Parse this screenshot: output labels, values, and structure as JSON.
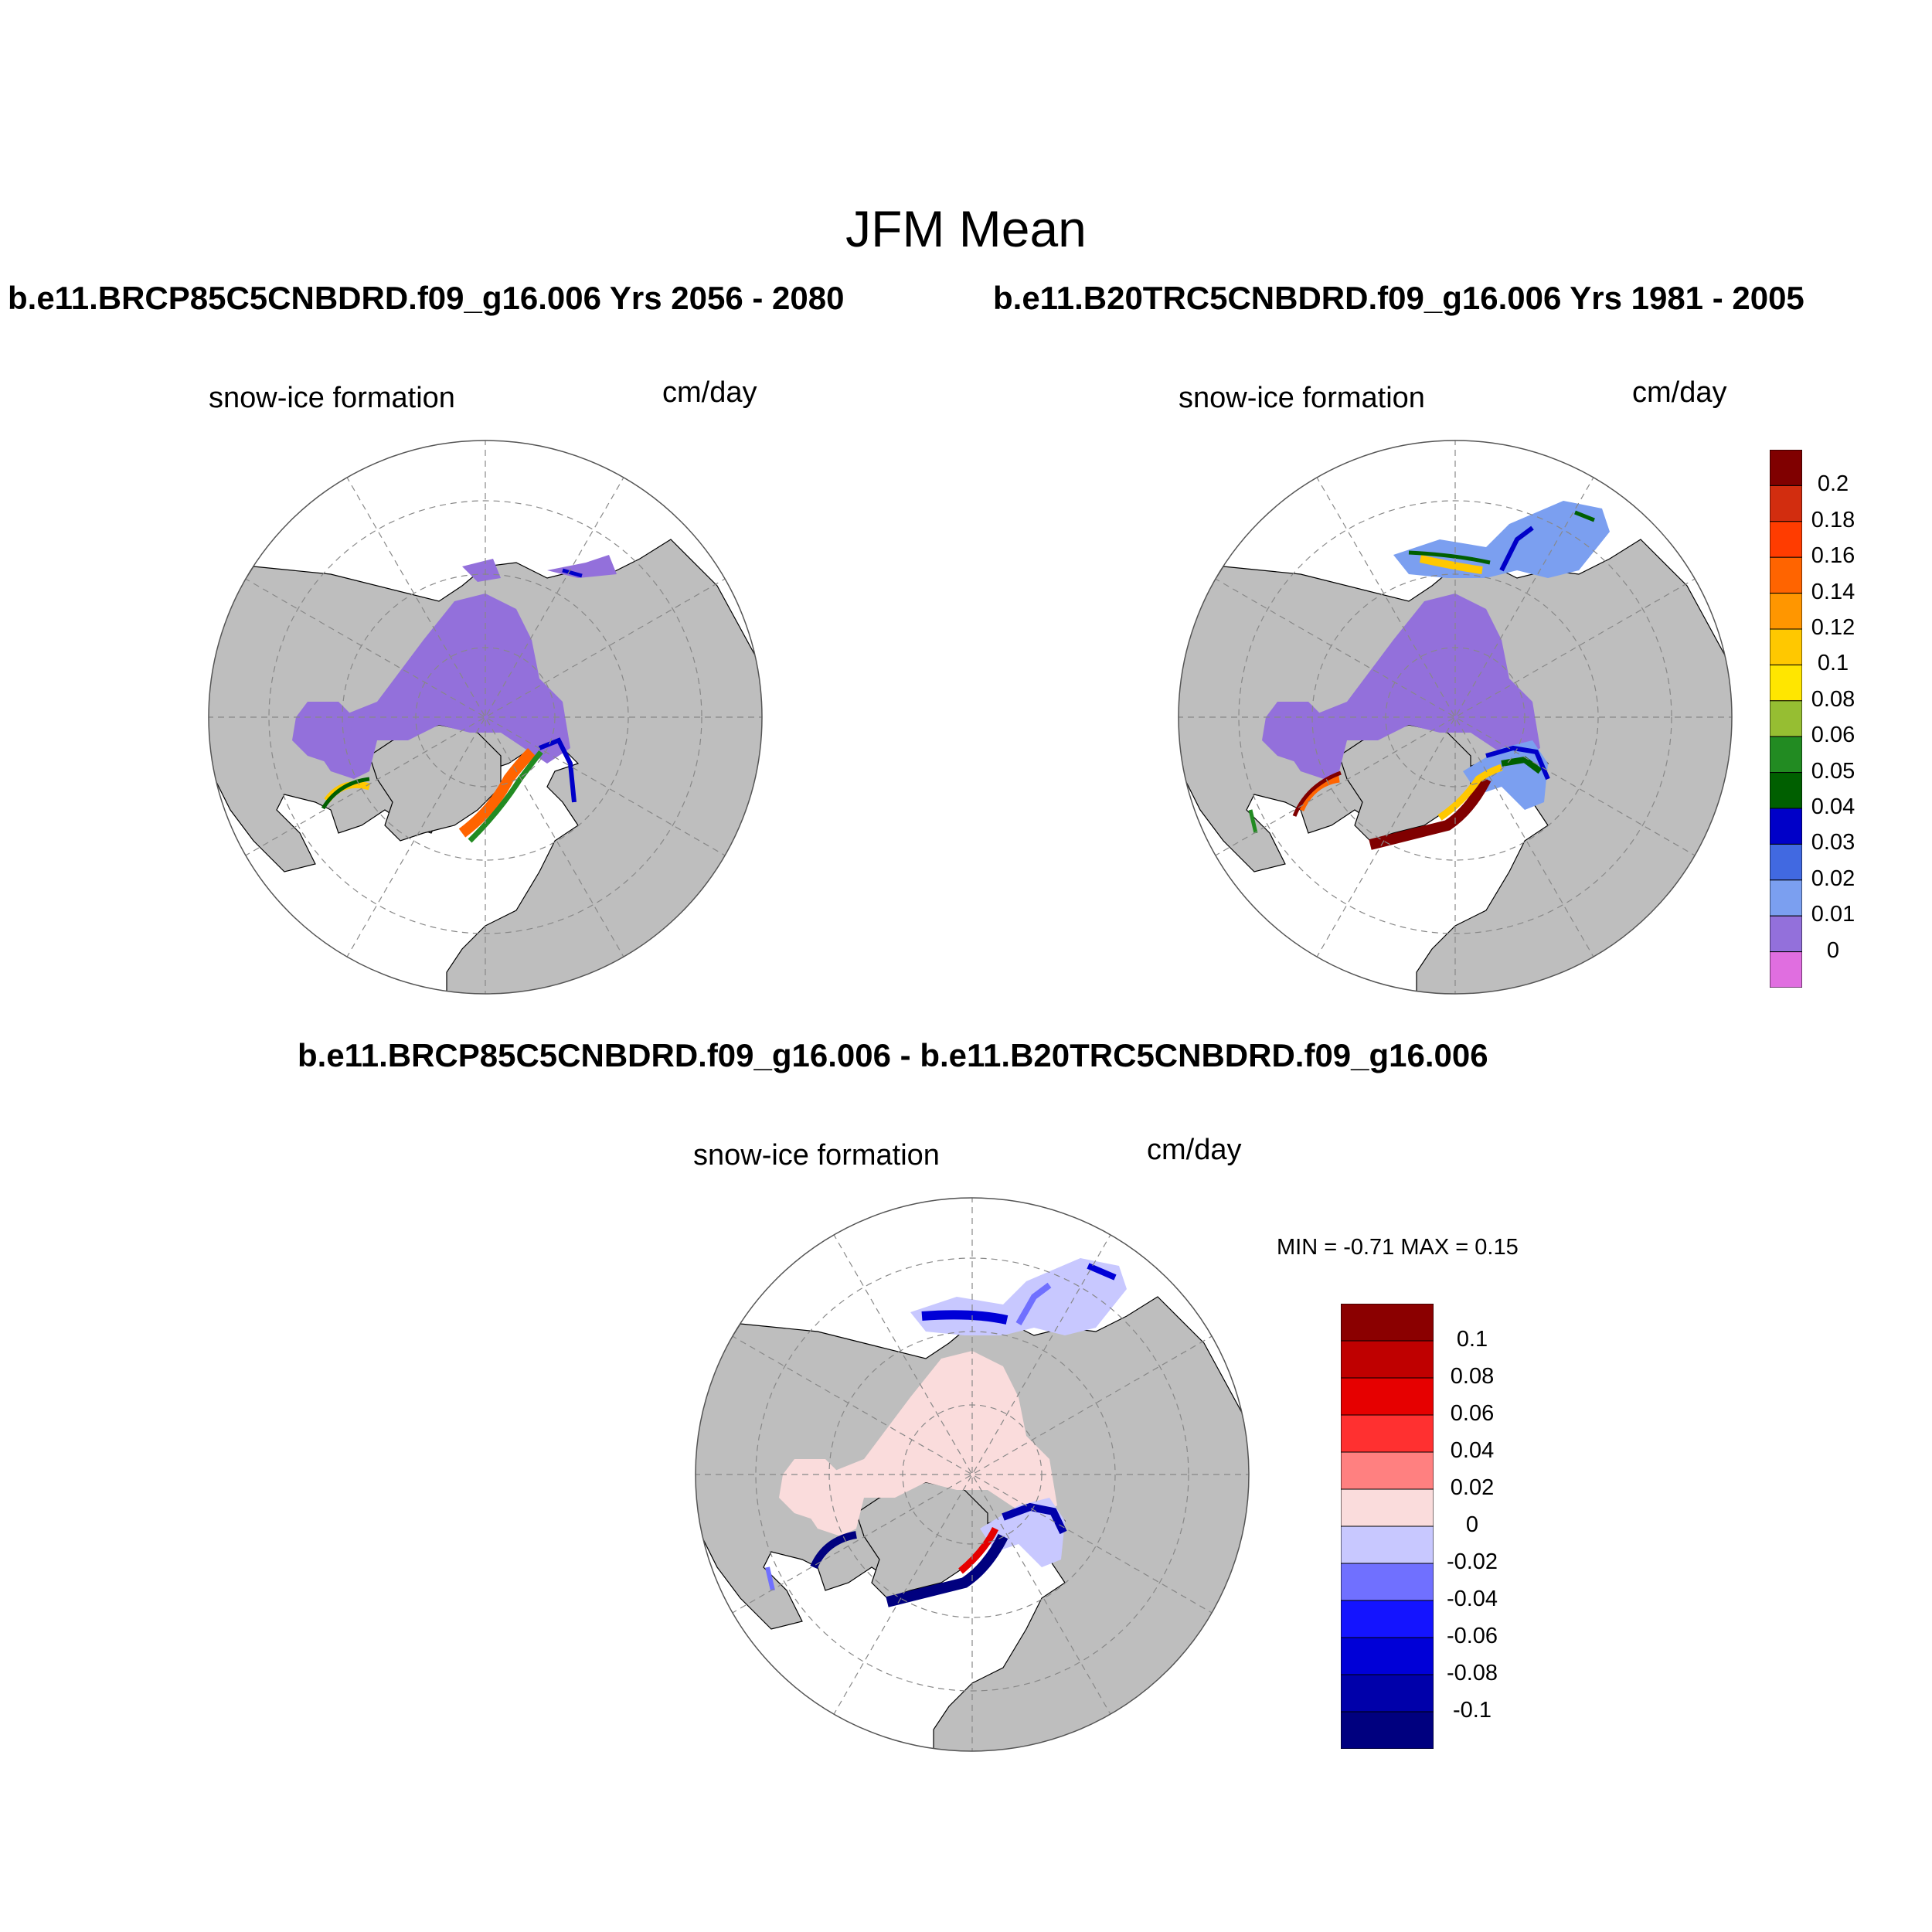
{
  "figure": {
    "title": "JFM Mean"
  },
  "panels": [
    {
      "title": "b.e11.BRCP85C5CNBDRD.f09_g16.006  Yrs 2056 - 2080",
      "variable": "snow-ice formation",
      "units": "cm/day"
    },
    {
      "title": "b.e11.B20TRC5CNBDRD.f09_g16.006  Yrs 1981 - 2005",
      "variable": "snow-ice formation",
      "units": "cm/day"
    },
    {
      "title": "b.e11.BRCP85C5CNBDRD.f09_g16.006 - b.e11.B20TRC5CNBDRD.f09_g16.006",
      "variable": "snow-ice formation",
      "units": "cm/day",
      "stats": "MIN =  -0.71 MAX =   0.15"
    }
  ],
  "colorbar_top": {
    "labels": [
      "0.2",
      "0.18",
      "0.16",
      "0.14",
      "0.12",
      "0.1",
      "0.08",
      "0.06",
      "0.05",
      "0.04",
      "0.03",
      "0.02",
      "0.01",
      "0"
    ],
    "colors": [
      "#800000",
      "#d22d0f",
      "#ff3c00",
      "#ff6400",
      "#ff9600",
      "#ffc800",
      "#ffe600",
      "#96be32",
      "#228b22",
      "#005f00",
      "#0000c8",
      "#4169e1",
      "#7b9ff0",
      "#9370db",
      "#e06ee0"
    ]
  },
  "colorbar_diff": {
    "labels": [
      "0.1",
      "0.08",
      "0.06",
      "0.04",
      "0.02",
      "0",
      "-0.02",
      "-0.04",
      "-0.06",
      "-0.08",
      "-0.1"
    ],
    "colors": [
      "#8b0000",
      "#bf0000",
      "#e60000",
      "#ff3030",
      "#ff8080",
      "#fadcdc",
      "#c8c8ff",
      "#7070ff",
      "#1414ff",
      "#0000d7",
      "#0000aa",
      "#00007f"
    ]
  },
  "chart_data": {
    "type": "polar-stereographic contour maps (Northern Hemisphere)",
    "title": "JFM Mean",
    "variable": "snow-ice formation",
    "units": "cm/day",
    "maps": [
      {
        "case": "b.e11.BRCP85C5CNBDRD.f09_g16.006",
        "years": "2056 - 2080",
        "central_arctic": "0-0.01",
        "notable_maxima": [
          "Barents/Kara Sea edge up to ~0.16",
          "Labrador Sea edge ~0.06",
          "Okhotsk/Bering edge ~0.05"
        ]
      },
      {
        "case": "b.e11.B20TRC5CNBDRD.f09_g16.006",
        "years": "1981 - 2005",
        "central_arctic": "0-0.01",
        "notable_maxima": [
          "Barents/Greenland Sea edge > 0.2",
          "Labrador Sea edge ~0.2",
          "Okhotsk Sea ~0.1",
          "Bering Sea ~0.05"
        ]
      },
      {
        "case": "difference",
        "min": -0.71,
        "max": 0.15,
        "central_arctic": "0-0.02",
        "notable": [
          "Barents/Greenland edge < -0.1",
          "Labrador edge < -0.1",
          "Okhotsk -0.04 to -0.08",
          "Barents inner +0.04 to +0.1"
        ]
      }
    ]
  }
}
